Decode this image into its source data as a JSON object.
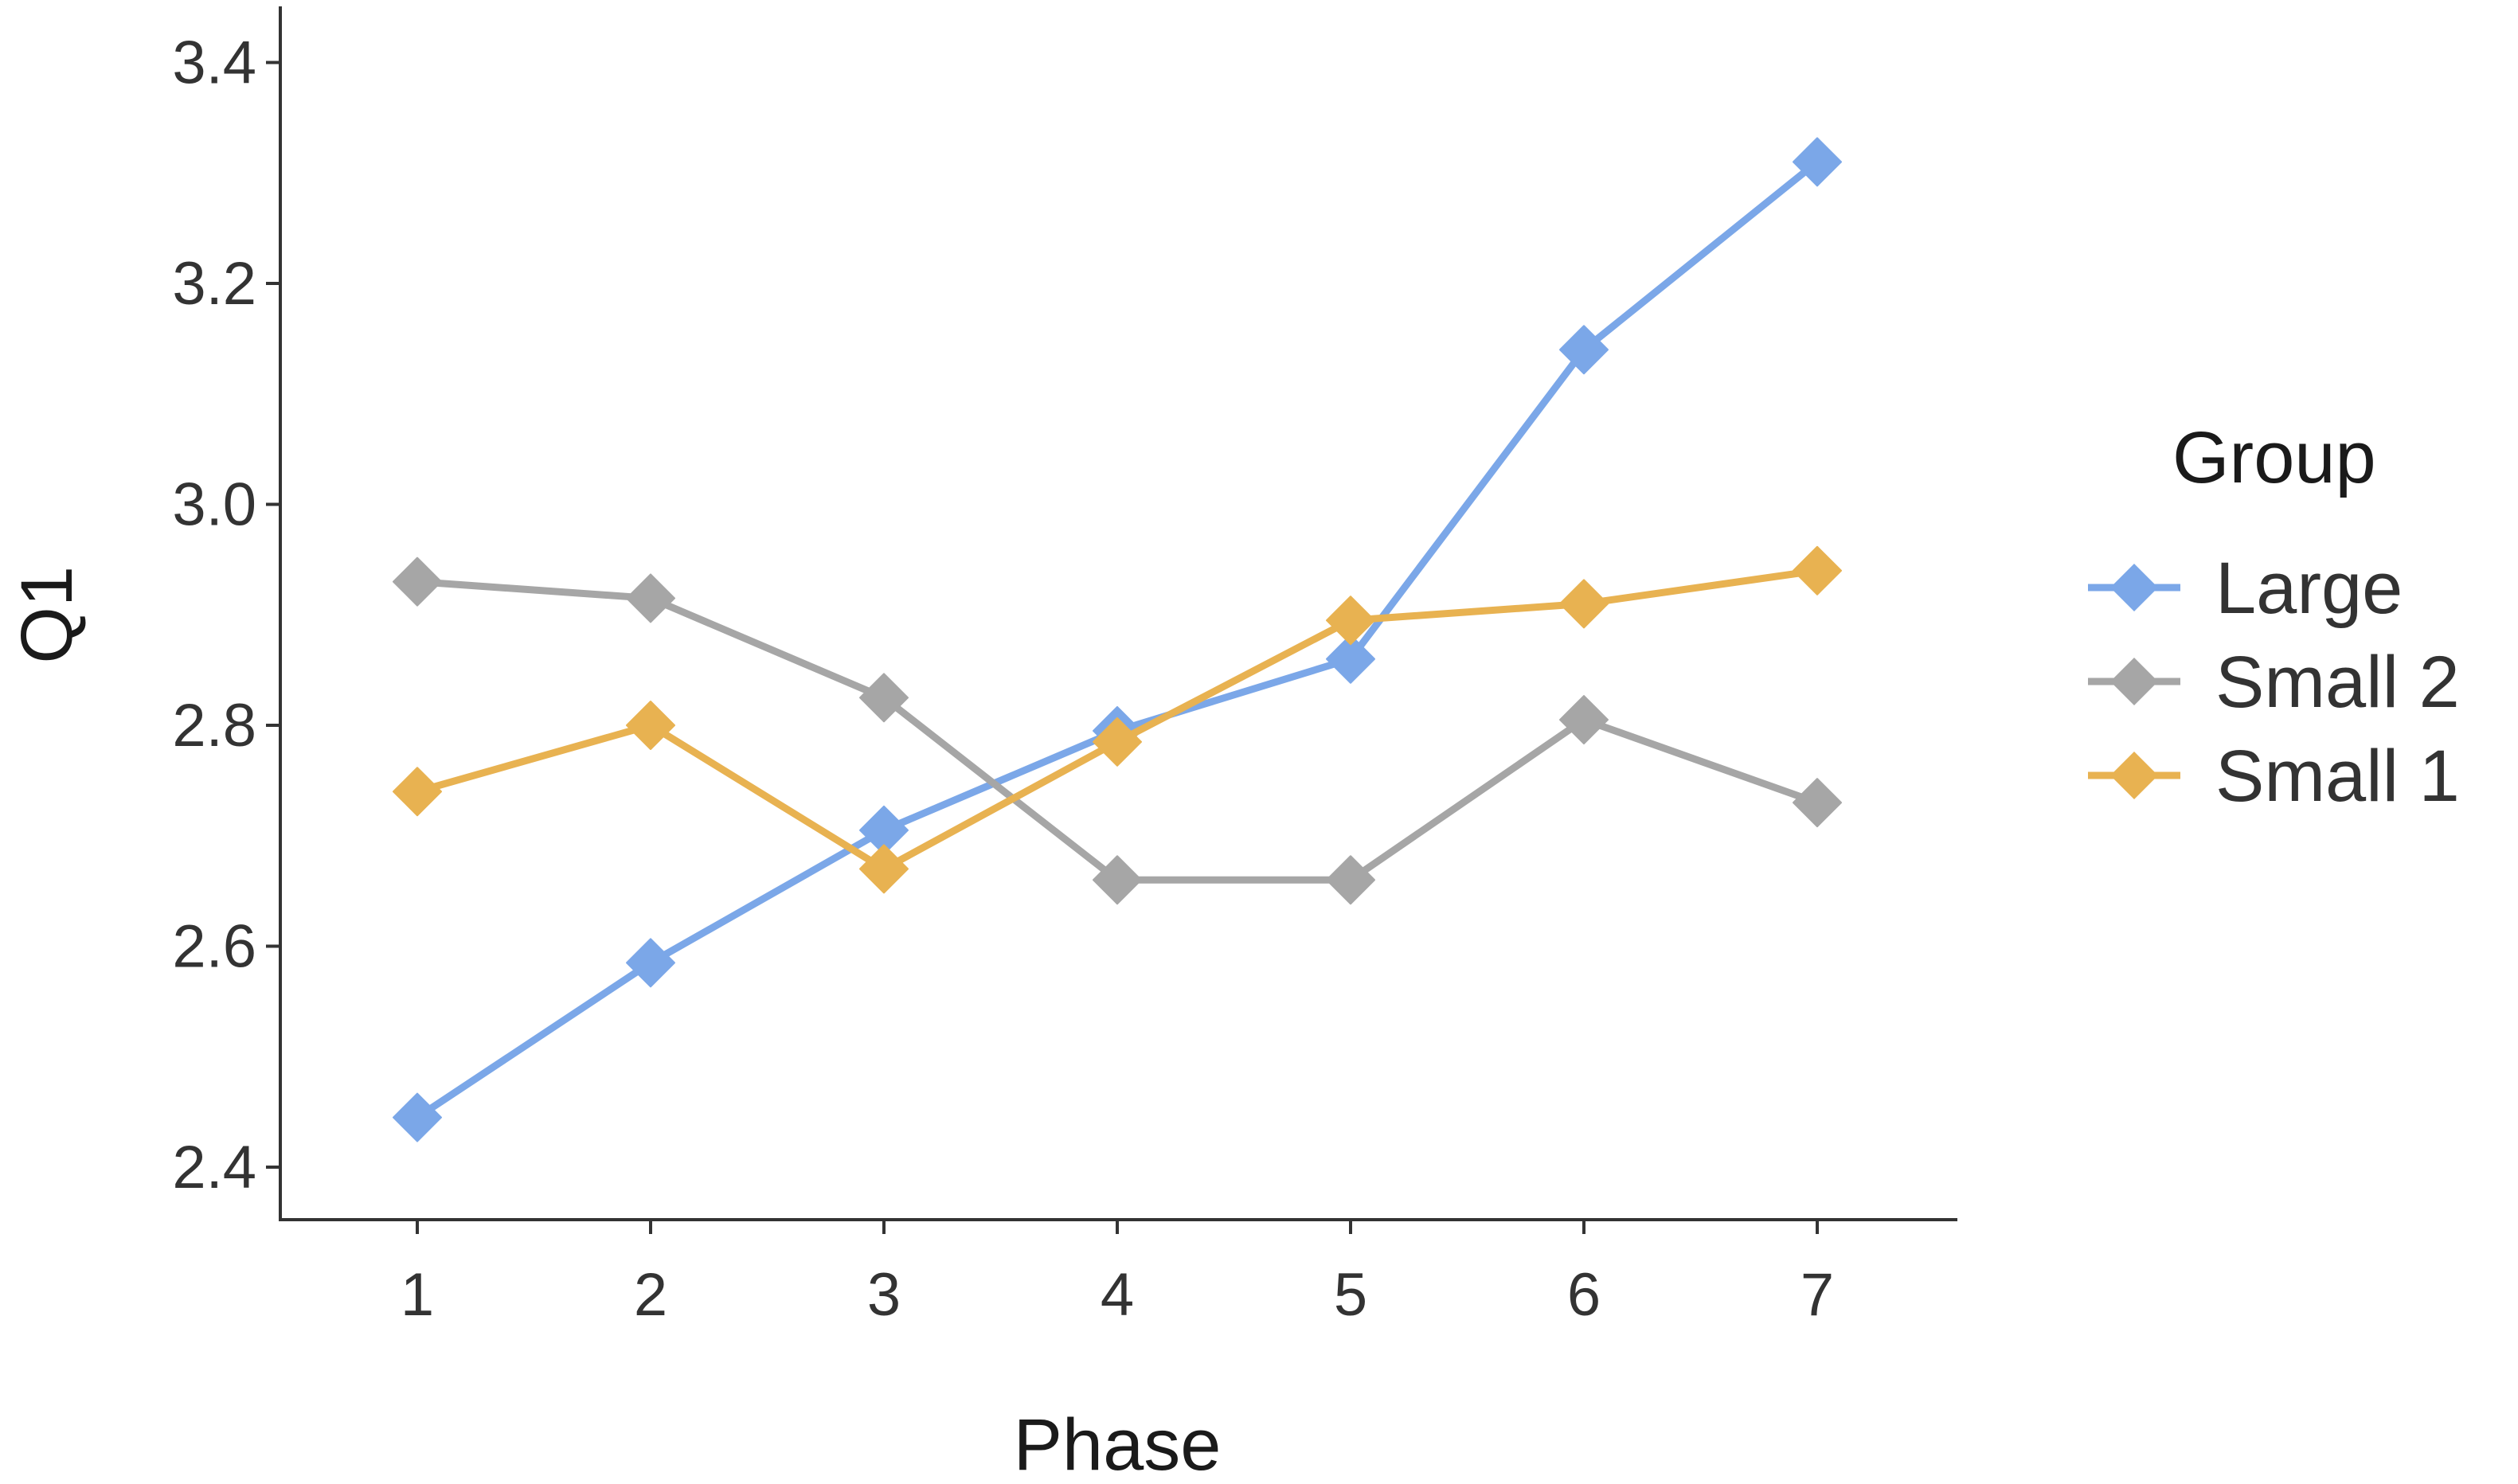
{
  "chart_data": {
    "type": "line",
    "title": "",
    "xlabel": "Phase",
    "ylabel": "Q1",
    "categories": [
      "1",
      "2",
      "3",
      "4",
      "5",
      "6",
      "7"
    ],
    "x": [
      1,
      2,
      3,
      4,
      5,
      6,
      7
    ],
    "xlim": [
      0.4,
      7.6
    ],
    "ylim": [
      2.35,
      3.45
    ],
    "yticks": [
      2.4,
      2.6,
      2.8,
      3.0,
      3.2,
      3.4
    ],
    "ytick_labels": [
      "2.4",
      "2.6",
      "2.8",
      "3.0",
      "3.2",
      "3.4"
    ],
    "grid": false,
    "marker": "diamond",
    "legend": {
      "title": "Group",
      "placement": "right"
    },
    "series": [
      {
        "name": "Large",
        "color": "#7BA7E8",
        "values": [
          2.445,
          2.585,
          2.705,
          2.795,
          2.86,
          3.14,
          3.31
        ]
      },
      {
        "name": "Small 2",
        "color": "#A6A6A6",
        "values": [
          2.93,
          2.915,
          2.825,
          2.66,
          2.66,
          2.805,
          2.73
        ]
      },
      {
        "name": "Small 1",
        "color": "#E8B251",
        "values": [
          2.74,
          2.8,
          2.67,
          2.785,
          2.895,
          2.91,
          2.94
        ]
      }
    ],
    "draw_order": [
      0,
      1,
      2
    ]
  }
}
